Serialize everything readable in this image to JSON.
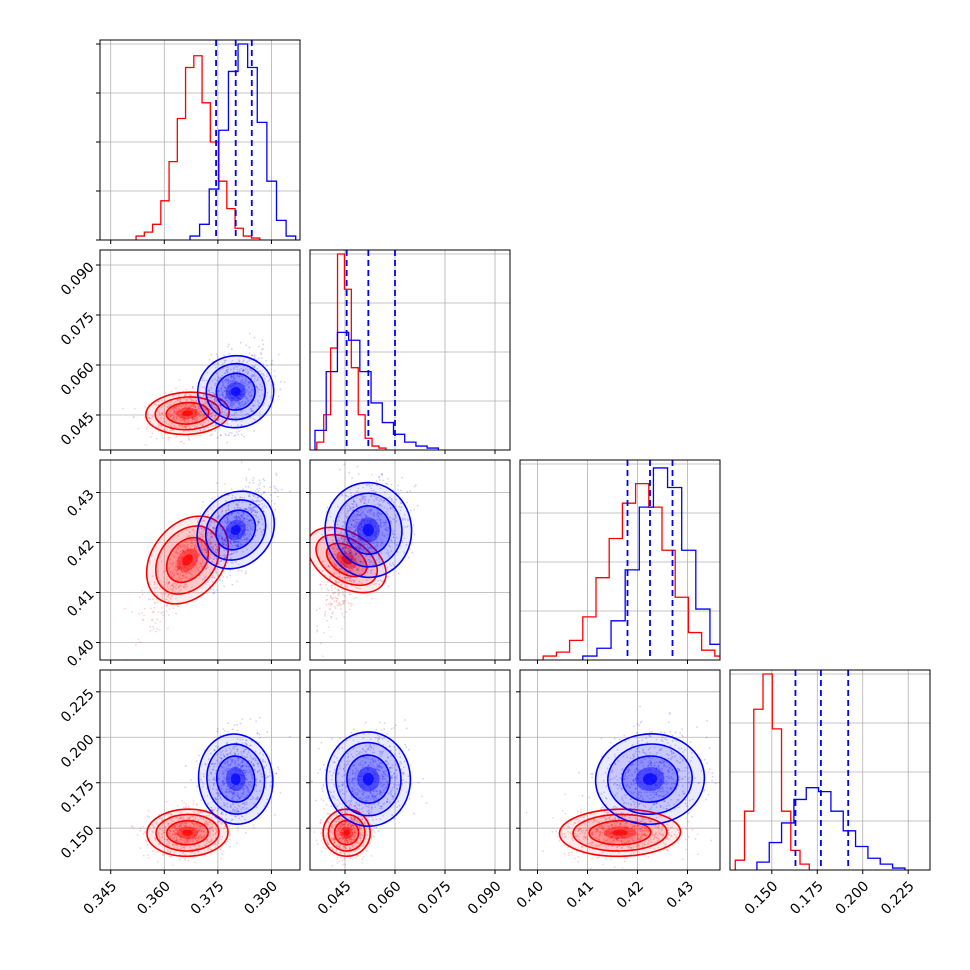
{
  "chart_data": {
    "type": "corner",
    "parameters": [
      {
        "range": [
          0.342,
          0.398
        ],
        "ticks": [
          "0.345",
          "0.360",
          "0.375",
          "0.390"
        ],
        "tick_values": [
          0.345,
          0.36,
          0.375,
          0.39
        ]
      },
      {
        "range": [
          0.0345,
          0.0945
        ],
        "ticks": [
          "0.045",
          "0.060",
          "0.075",
          "0.090"
        ],
        "tick_values": [
          0.045,
          0.06,
          0.075,
          0.09
        ]
      },
      {
        "range": [
          0.3965,
          0.4365
        ],
        "ticks": [
          "0.40",
          "0.41",
          "0.42",
          "0.43"
        ],
        "tick_values": [
          0.4,
          0.41,
          0.42,
          0.43
        ]
      },
      {
        "range": [
          0.127,
          0.237
        ],
        "ticks": [
          "0.150",
          "0.175",
          "0.200",
          "0.225"
        ],
        "tick_values": [
          0.15,
          0.175,
          0.2,
          0.225
        ]
      }
    ],
    "grid": true,
    "series": [
      {
        "color": "#ff0000",
        "means": [
          0.3665,
          0.0455,
          0.4165,
          0.1475
        ],
        "stds": [
          0.0045,
          0.0028,
          0.0048,
          0.0055
        ],
        "correlations": {
          "0-1": 0.2,
          "0-2": 0.85,
          "0-3": 0.1,
          "1-2": 0.6,
          "1-3": 0.1,
          "2-3": 0.1
        },
        "histograms": [
          [
            0.02,
            0.04,
            0.08,
            0.2,
            0.4,
            0.62,
            0.88,
            0.94,
            0.7,
            0.5,
            0.3,
            0.16,
            0.06,
            0.02,
            0.01
          ],
          [
            0.04,
            0.18,
            0.52,
            1.0,
            0.82,
            0.42,
            0.18,
            0.06,
            0.02,
            0.01
          ],
          [
            0.02,
            0.04,
            0.1,
            0.22,
            0.42,
            0.62,
            0.8,
            0.9,
            0.78,
            0.56,
            0.32,
            0.14,
            0.05,
            0.02
          ],
          [
            0.05,
            0.3,
            0.82,
            1.0,
            0.72,
            0.3,
            0.1,
            0.03
          ]
        ]
      },
      {
        "color": "#0000ff",
        "means": [
          0.38,
          0.052,
          0.4225,
          0.177
        ],
        "stds": [
          0.004,
          0.005,
          0.0042,
          0.011
        ],
        "correlations": {
          "0-1": 0.3,
          "0-2": 0.7,
          "0-3": 0.2,
          "1-2": 0.2,
          "1-3": 0.1,
          "2-3": 0.2
        },
        "histograms": [
          [
            0.02,
            0.08,
            0.26,
            0.56,
            0.86,
            1.0,
            0.88,
            0.6,
            0.3,
            0.1,
            0.02
          ],
          [
            0.1,
            0.4,
            0.6,
            0.56,
            0.4,
            0.24,
            0.14,
            0.08,
            0.04,
            0.02,
            0.01
          ],
          [
            0.02,
            0.06,
            0.2,
            0.46,
            0.78,
            0.98,
            0.88,
            0.56,
            0.26,
            0.08,
            0.02
          ],
          [
            0.04,
            0.14,
            0.24,
            0.36,
            0.42,
            0.4,
            0.3,
            0.2,
            0.12,
            0.06,
            0.03,
            0.01
          ]
        ]
      }
    ],
    "quantiles": [
      [
        0.3745,
        0.38,
        0.3845
      ],
      [
        0.0455,
        0.052,
        0.06
      ],
      [
        0.418,
        0.4225,
        0.427
      ],
      [
        0.163,
        0.177,
        0.192
      ]
    ]
  }
}
